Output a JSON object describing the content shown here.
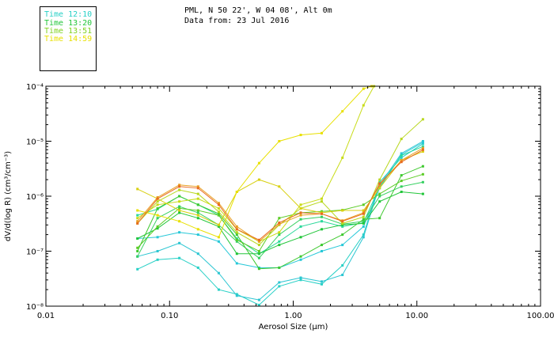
{
  "header": {
    "line1": "PML, N 50 22', W 04 08', Alt 0m",
    "line2": "Data from: 23 Jul 2016"
  },
  "legend": [
    {
      "label": "Time 12:10",
      "color": "#27d0c6"
    },
    {
      "label": "Time 13:20",
      "color": "#22c63a"
    },
    {
      "label": "Time 13:51",
      "color": "#7fd222"
    },
    {
      "label": "Time 14:59",
      "color": "#e8e000"
    }
  ],
  "chart_data": {
    "type": "line",
    "xscale": "log",
    "yscale": "log",
    "xlim": [
      0.01,
      100
    ],
    "ylim": [
      1e-08,
      0.0001
    ],
    "xlabel": "Aerosol Size (μm)",
    "ylabel": "dV/d(log R) (cm³/cm⁻³)",
    "x_ticks": [
      "0.01",
      "0.10",
      "1.00",
      "10.00",
      "100.00"
    ],
    "y_ticks": [
      "10⁻⁸",
      "10⁻⁷",
      "10⁻⁶",
      "10⁻⁵",
      "10⁻⁴"
    ],
    "grid": false,
    "series": [
      {
        "color": "#27d0c6",
        "x": [
          0.055,
          0.08,
          0.12,
          0.17,
          0.25,
          0.35,
          0.53,
          0.77,
          1.15,
          1.7,
          2.5,
          3.7,
          5.0,
          7.5,
          11.2
        ],
        "y": [
          4.7e-08,
          7e-08,
          7.5e-08,
          5e-08,
          2e-08,
          1.65e-08,
          1.05e-08,
          2.3e-08,
          3e-08,
          2.5e-08,
          5.5e-08,
          2e-07,
          1.8e-06,
          5e-06,
          9e-06
        ]
      },
      {
        "color": "#2cc6d2",
        "x": [
          0.055,
          0.08,
          0.12,
          0.17,
          0.25,
          0.35,
          0.53,
          0.77,
          1.15,
          1.7,
          2.5,
          3.7,
          5.0,
          7.5,
          11.2
        ],
        "y": [
          8e-08,
          1e-07,
          1.4e-07,
          9e-08,
          4e-08,
          1.55e-08,
          1.3e-08,
          2.7e-08,
          3.3e-08,
          2.8e-08,
          3.7e-08,
          1.8e-07,
          1.6e-06,
          6e-06,
          1e-05
        ]
      },
      {
        "color": "#27c8d8",
        "x": [
          0.055,
          0.08,
          0.12,
          0.17,
          0.25,
          0.35,
          0.53,
          0.77,
          1.15,
          1.7,
          2.5,
          3.7,
          5.0,
          7.5,
          11.2
        ],
        "y": [
          1.7e-07,
          1.8e-07,
          2.2e-07,
          2e-07,
          1.5e-07,
          6e-08,
          5e-08,
          5e-08,
          7e-08,
          1e-07,
          1.3e-07,
          2.8e-07,
          1.4e-06,
          5.7e-06,
          9.5e-06
        ]
      },
      {
        "color": "#2ad89a",
        "x": [
          0.055,
          0.08,
          0.12,
          0.17,
          0.25,
          0.35,
          0.53,
          0.77,
          1.15,
          1.7,
          2.5,
          3.7,
          5.0,
          7.5,
          11.2
        ],
        "y": [
          4.5e-07,
          5.8e-07,
          1e-06,
          7e-07,
          4.5e-07,
          1.7e-07,
          9e-08,
          1.5e-07,
          2.8e-07,
          3.5e-07,
          2.8e-07,
          3.3e-07,
          1.5e-06,
          5.5e-06,
          8e-06
        ]
      },
      {
        "color": "#35d060",
        "x": [
          0.055,
          0.08,
          0.12,
          0.17,
          0.25,
          0.35,
          0.53,
          0.77,
          1.15,
          1.7,
          2.5,
          3.7,
          5.0,
          7.5,
          11.2
        ],
        "y": [
          8e-08,
          4e-07,
          6.5e-07,
          5e-07,
          3e-07,
          1.5e-07,
          7.5e-08,
          2e-07,
          3.8e-07,
          4.2e-07,
          3.1e-07,
          3.5e-07,
          1e-06,
          1.5e-06,
          1.8e-06
        ]
      },
      {
        "color": "#22c63a",
        "x": [
          0.055,
          0.08,
          0.12,
          0.17,
          0.25,
          0.35,
          0.53,
          0.77,
          1.15,
          1.7,
          2.5,
          3.7,
          5.0,
          7.5,
          11.2
        ],
        "y": [
          1.7e-07,
          2.6e-07,
          5e-07,
          4e-07,
          2.8e-07,
          9e-08,
          9e-08,
          1.3e-07,
          1.8e-07,
          2.5e-07,
          3e-07,
          3.2e-07,
          8e-07,
          1.2e-06,
          1.1e-06
        ]
      },
      {
        "color": "#3ec92f",
        "x": [
          0.055,
          0.08,
          0.12,
          0.17,
          0.25,
          0.35,
          0.53,
          0.77,
          1.15,
          1.7,
          2.5,
          3.7,
          5.0,
          7.5,
          11.2
        ],
        "y": [
          1e-07,
          6e-07,
          1e-06,
          7e-07,
          4.8e-07,
          2e-07,
          4.8e-08,
          5e-08,
          8e-08,
          1.3e-07,
          2e-07,
          3.8e-07,
          4e-07,
          2.4e-06,
          3.5e-06
        ]
      },
      {
        "color": "#5ccc26",
        "x": [
          0.055,
          0.08,
          0.12,
          0.17,
          0.25,
          0.35,
          0.53,
          0.77,
          1.15,
          1.7,
          2.5,
          3.7,
          5.0,
          7.5,
          11.2
        ],
        "y": [
          1.15e-07,
          2.8e-07,
          6e-07,
          5.5e-07,
          4.5e-07,
          1.6e-07,
          1e-07,
          4e-07,
          5e-07,
          5.3e-07,
          5.6e-07,
          7e-07,
          1.1e-06,
          1.9e-06,
          2.5e-06
        ]
      },
      {
        "color": "#b8d71f",
        "x": [
          0.055,
          0.08,
          0.12,
          0.17,
          0.25,
          0.35,
          0.53,
          0.77,
          1.15,
          1.7,
          2.5,
          3.7,
          5.0,
          7.5,
          11.2
        ],
        "y": [
          3.2e-07,
          8e-07,
          1.3e-06,
          1.1e-06,
          5.2e-07,
          2.2e-07,
          1.3e-07,
          3e-07,
          6e-07,
          8e-07,
          3.2e-07,
          4.2e-07,
          2e-06,
          1.1e-05,
          2.5e-05
        ]
      },
      {
        "color": "#d8d010",
        "x": [
          0.055,
          0.08,
          0.12,
          0.17,
          0.25,
          0.35,
          0.53,
          0.77,
          1.15,
          1.7,
          2.5,
          3.7,
          5.0,
          7.5,
          11.2
        ],
        "y": [
          1.35e-06,
          9e-07,
          5.5e-07,
          4.5e-07,
          3e-07,
          1.2e-06,
          2e-06,
          1.5e-06,
          6e-07,
          5e-07,
          5.5e-07,
          5.5e-07,
          1.4e-06,
          4.5e-06,
          6.5e-06
        ]
      },
      {
        "color": "#e8e000",
        "x": [
          0.055,
          0.08,
          0.12,
          0.17,
          0.25,
          0.35,
          0.53,
          0.77,
          1.15,
          1.7,
          2.5,
          3.7,
          4.3
        ],
        "y": [
          5.5e-07,
          4.5e-07,
          3.5e-07,
          2.5e-07,
          1.8e-07,
          1.2e-06,
          4e-06,
          1e-05,
          1.3e-05,
          1.4e-05,
          3.5e-05,
          9e-05,
          0.0001
        ]
      },
      {
        "color": "#c8dc18",
        "x": [
          0.055,
          0.08,
          0.12,
          0.17,
          0.25,
          0.35,
          0.53,
          0.77,
          1.15,
          1.7,
          2.5,
          3.7,
          4.5
        ],
        "y": [
          4e-07,
          7e-07,
          8e-07,
          9e-07,
          6e-07,
          2.5e-07,
          1.5e-07,
          2.2e-07,
          7e-07,
          9e-07,
          5e-06,
          4.5e-05,
          0.0001
        ]
      },
      {
        "color": "#e8a020",
        "x": [
          0.055,
          0.08,
          0.12,
          0.17,
          0.25,
          0.35,
          0.53,
          0.77,
          1.15,
          1.7,
          2.5,
          3.7,
          5.0,
          7.5,
          11.2
        ],
        "y": [
          3.5e-07,
          9.5e-07,
          1.6e-06,
          1.5e-06,
          7.5e-07,
          2.8e-07,
          1.5e-07,
          3.1e-07,
          4.5e-07,
          4.8e-07,
          3.6e-07,
          5e-07,
          1.6e-06,
          4.5e-06,
          7.5e-06
        ]
      },
      {
        "color": "#e86a20",
        "x": [
          0.055,
          0.08,
          0.12,
          0.17,
          0.25,
          0.35,
          0.53,
          0.77,
          1.15,
          1.7,
          2.5,
          3.7,
          5.0,
          7.5,
          11.2
        ],
        "y": [
          3.2e-07,
          9e-07,
          1.5e-06,
          1.4e-06,
          7e-07,
          2.5e-07,
          1.6e-07,
          3.3e-07,
          5e-07,
          4.8e-07,
          3.5e-07,
          4.8e-07,
          1.7e-06,
          4.2e-06,
          7e-06
        ]
      }
    ]
  }
}
